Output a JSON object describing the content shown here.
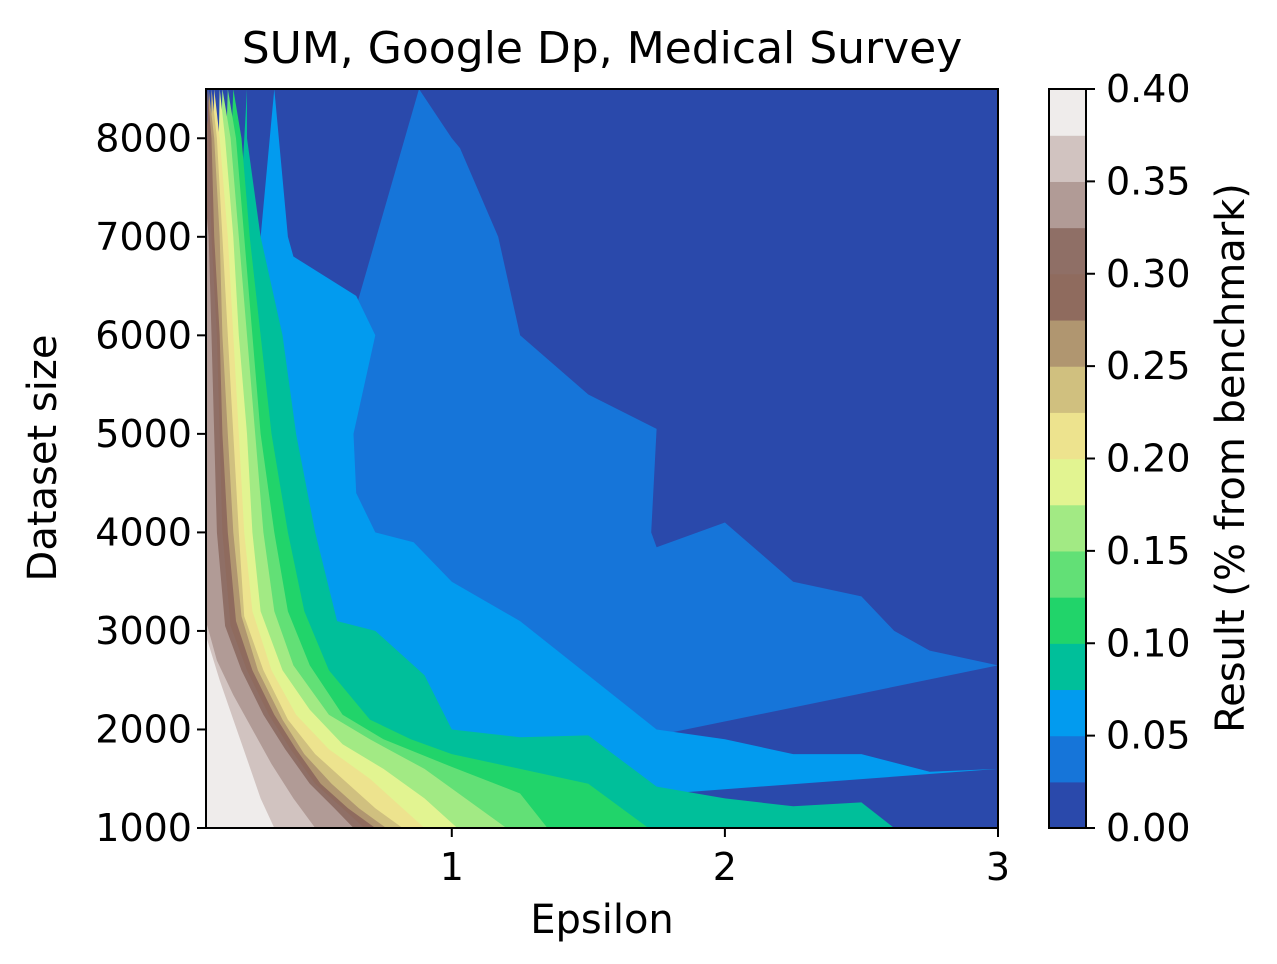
{
  "chart_data": {
    "type": "contour",
    "title": "SUM, Google Dp, Medical Survey",
    "xlabel": "Epsilon",
    "ylabel": "Dataset size",
    "xlim": [
      0.1,
      3
    ],
    "ylim": [
      1000,
      8500
    ],
    "x_ticks": [
      1,
      2,
      3
    ],
    "x_tick_labels": [
      "1",
      "2",
      "3"
    ],
    "y_ticks": [
      1000,
      2000,
      3000,
      4000,
      5000,
      6000,
      7000,
      8000
    ],
    "y_tick_labels": [
      "1000",
      "2000",
      "3000",
      "4000",
      "5000",
      "6000",
      "7000",
      "8000"
    ],
    "colorbar": {
      "label": "Result (% from benchmark)",
      "ticks": [
        0.0,
        0.05,
        0.1,
        0.15,
        0.2,
        0.25,
        0.3,
        0.35,
        0.4
      ],
      "tick_labels": [
        "0.00",
        "0.05",
        "0.10",
        "0.15",
        "0.20",
        "0.25",
        "0.30",
        "0.35",
        "0.40"
      ],
      "range": [
        0.0,
        0.4
      ],
      "colormap": "terrain"
    },
    "levels": [
      0.0,
      0.025,
      0.05,
      0.075,
      0.1,
      0.125,
      0.15,
      0.175,
      0.2,
      0.225,
      0.25,
      0.275,
      0.3,
      0.325,
      0.35,
      0.375,
      0.4
    ],
    "level_colors": [
      "#2a49ab",
      "#1675d9",
      "#029bef",
      "#00bf9a",
      "#21d46a",
      "#62e076",
      "#a2ea84",
      "#e2f491",
      "#ede38e",
      "#d0c07f",
      "#b09670",
      "#8f6b5e",
      "#8f6f66",
      "#b19b96",
      "#d1c3c0",
      "#efeceb"
    ],
    "contour_lines": [
      {
        "level": 0.025,
        "points": [
          [
            0.88,
            8500
          ],
          [
            1.0,
            8000
          ],
          [
            1.03,
            7900
          ],
          [
            1.17,
            7000
          ],
          [
            1.25,
            6000
          ],
          [
            1.5,
            5400
          ],
          [
            1.75,
            5050
          ],
          [
            1.73,
            4000
          ],
          [
            1.75,
            3850
          ],
          [
            2.0,
            4100
          ],
          [
            2.25,
            3500
          ],
          [
            2.5,
            3350
          ],
          [
            2.62,
            3000
          ],
          [
            2.75,
            2800
          ],
          [
            3.0,
            2650
          ]
        ]
      },
      {
        "level": 0.05,
        "points": [
          [
            0.35,
            8500
          ],
          [
            0.4,
            7000
          ],
          [
            0.42,
            6800
          ],
          [
            0.65,
            6400
          ],
          [
            0.72,
            6000
          ],
          [
            0.64,
            5000
          ],
          [
            0.65,
            4400
          ],
          [
            0.72,
            4000
          ],
          [
            0.86,
            3900
          ],
          [
            1.0,
            3500
          ],
          [
            1.25,
            3100
          ],
          [
            1.5,
            2550
          ],
          [
            1.75,
            2000
          ],
          [
            2.0,
            1900
          ],
          [
            2.25,
            1750
          ],
          [
            2.5,
            1750
          ],
          [
            2.75,
            1570
          ],
          [
            3.0,
            1600
          ]
        ]
      },
      {
        "level": 0.075,
        "points": [
          [
            0.25,
            8500
          ],
          [
            0.25,
            8000
          ],
          [
            0.3,
            7000
          ],
          [
            0.38,
            6000
          ],
          [
            0.43,
            5000
          ],
          [
            0.5,
            4000
          ],
          [
            0.58,
            3100
          ],
          [
            0.72,
            3000
          ],
          [
            0.9,
            2550
          ],
          [
            1.0,
            2000
          ],
          [
            1.25,
            1920
          ],
          [
            1.5,
            1940
          ],
          [
            1.75,
            1420
          ],
          [
            2.0,
            1300
          ],
          [
            2.25,
            1220
          ],
          [
            2.5,
            1260
          ],
          [
            2.62,
            1000
          ]
        ]
      },
      {
        "level": 0.1,
        "points": [
          [
            0.2,
            8500
          ],
          [
            0.23,
            8000
          ],
          [
            0.26,
            7000
          ],
          [
            0.3,
            6000
          ],
          [
            0.34,
            5000
          ],
          [
            0.4,
            4000
          ],
          [
            0.46,
            3200
          ],
          [
            0.55,
            2600
          ],
          [
            0.7,
            2100
          ],
          [
            0.85,
            1900
          ],
          [
            1.0,
            1750
          ],
          [
            1.25,
            1600
          ],
          [
            1.5,
            1450
          ],
          [
            1.72,
            1000
          ]
        ]
      },
      {
        "level": 0.125,
        "points": [
          [
            0.18,
            8500
          ],
          [
            0.21,
            8000
          ],
          [
            0.24,
            7000
          ],
          [
            0.27,
            6000
          ],
          [
            0.3,
            5000
          ],
          [
            0.35,
            4000
          ],
          [
            0.4,
            3200
          ],
          [
            0.48,
            2650
          ],
          [
            0.6,
            2150
          ],
          [
            0.75,
            1900
          ],
          [
            1.0,
            1620
          ],
          [
            1.25,
            1350
          ],
          [
            1.35,
            1000
          ]
        ]
      },
      {
        "level": 0.15,
        "points": [
          [
            0.16,
            8500
          ],
          [
            0.19,
            8000
          ],
          [
            0.22,
            7000
          ],
          [
            0.25,
            6000
          ],
          [
            0.28,
            5000
          ],
          [
            0.31,
            4000
          ],
          [
            0.35,
            3200
          ],
          [
            0.42,
            2650
          ],
          [
            0.55,
            2150
          ],
          [
            0.7,
            1900
          ],
          [
            0.9,
            1600
          ],
          [
            1.05,
            1300
          ],
          [
            1.2,
            1000
          ]
        ]
      },
      {
        "level": 0.175,
        "points": [
          [
            0.15,
            8500
          ],
          [
            0.17,
            8000
          ],
          [
            0.2,
            7000
          ],
          [
            0.22,
            6000
          ],
          [
            0.25,
            5000
          ],
          [
            0.27,
            4000
          ],
          [
            0.3,
            3200
          ],
          [
            0.38,
            2600
          ],
          [
            0.48,
            2200
          ],
          [
            0.6,
            1850
          ],
          [
            0.75,
            1600
          ],
          [
            0.9,
            1300
          ],
          [
            1.02,
            1000
          ]
        ]
      },
      {
        "level": 0.2,
        "points": [
          [
            0.13,
            8500
          ],
          [
            0.15,
            8000
          ],
          [
            0.18,
            7000
          ],
          [
            0.2,
            6000
          ],
          [
            0.22,
            5000
          ],
          [
            0.24,
            4000
          ],
          [
            0.27,
            3200
          ],
          [
            0.34,
            2600
          ],
          [
            0.43,
            2150
          ],
          [
            0.55,
            1800
          ],
          [
            0.7,
            1500
          ],
          [
            0.8,
            1250
          ],
          [
            0.9,
            1000
          ]
        ]
      },
      {
        "level": 0.225,
        "points": [
          [
            0.12,
            8500
          ],
          [
            0.14,
            8000
          ],
          [
            0.16,
            7000
          ],
          [
            0.18,
            6000
          ],
          [
            0.2,
            5000
          ],
          [
            0.22,
            4000
          ],
          [
            0.24,
            3150
          ],
          [
            0.31,
            2600
          ],
          [
            0.4,
            2100
          ],
          [
            0.5,
            1750
          ],
          [
            0.62,
            1450
          ],
          [
            0.72,
            1200
          ],
          [
            0.82,
            1000
          ]
        ]
      },
      {
        "level": 0.25,
        "points": [
          [
            0.11,
            8500
          ],
          [
            0.13,
            8000
          ],
          [
            0.15,
            7000
          ],
          [
            0.16,
            6000
          ],
          [
            0.18,
            5000
          ],
          [
            0.2,
            4000
          ],
          [
            0.23,
            3150
          ],
          [
            0.29,
            2600
          ],
          [
            0.38,
            2100
          ],
          [
            0.46,
            1750
          ],
          [
            0.56,
            1450
          ],
          [
            0.66,
            1200
          ],
          [
            0.76,
            1000
          ]
        ]
      },
      {
        "level": 0.275,
        "points": [
          [
            0.105,
            8500
          ],
          [
            0.12,
            8000
          ],
          [
            0.13,
            7000
          ],
          [
            0.15,
            6000
          ],
          [
            0.16,
            5000
          ],
          [
            0.18,
            4000
          ],
          [
            0.21,
            3100
          ],
          [
            0.27,
            2600
          ],
          [
            0.35,
            2150
          ],
          [
            0.43,
            1800
          ],
          [
            0.52,
            1450
          ],
          [
            0.62,
            1200
          ],
          [
            0.72,
            1000
          ]
        ]
      },
      {
        "level": 0.3,
        "points": [
          [
            0.1,
            8300
          ],
          [
            0.11,
            8000
          ],
          [
            0.12,
            7000
          ],
          [
            0.14,
            6000
          ],
          [
            0.15,
            5000
          ],
          [
            0.16,
            4000
          ],
          [
            0.19,
            3050
          ],
          [
            0.25,
            2600
          ],
          [
            0.33,
            2150
          ],
          [
            0.41,
            1800
          ],
          [
            0.5,
            1450
          ],
          [
            0.6,
            1200
          ],
          [
            0.68,
            1000
          ]
        ]
      },
      {
        "level": 0.325,
        "points": [
          [
            0.1,
            7300
          ],
          [
            0.11,
            7000
          ],
          [
            0.12,
            6000
          ],
          [
            0.13,
            5000
          ],
          [
            0.14,
            4000
          ],
          [
            0.17,
            3050
          ],
          [
            0.23,
            2600
          ],
          [
            0.31,
            2150
          ],
          [
            0.39,
            1800
          ],
          [
            0.48,
            1450
          ],
          [
            0.57,
            1200
          ],
          [
            0.64,
            1000
          ]
        ]
      },
      {
        "level": 0.35,
        "points": [
          [
            0.1,
            3100
          ],
          [
            0.14,
            2700
          ],
          [
            0.2,
            2350
          ],
          [
            0.27,
            2000
          ],
          [
            0.34,
            1650
          ],
          [
            0.42,
            1300
          ],
          [
            0.5,
            1000
          ]
        ]
      },
      {
        "level": 0.375,
        "points": [
          [
            0.1,
            2950
          ],
          [
            0.15,
            2500
          ],
          [
            0.2,
            2100
          ],
          [
            0.25,
            1700
          ],
          [
            0.3,
            1300
          ],
          [
            0.35,
            1000
          ]
        ]
      }
    ]
  }
}
